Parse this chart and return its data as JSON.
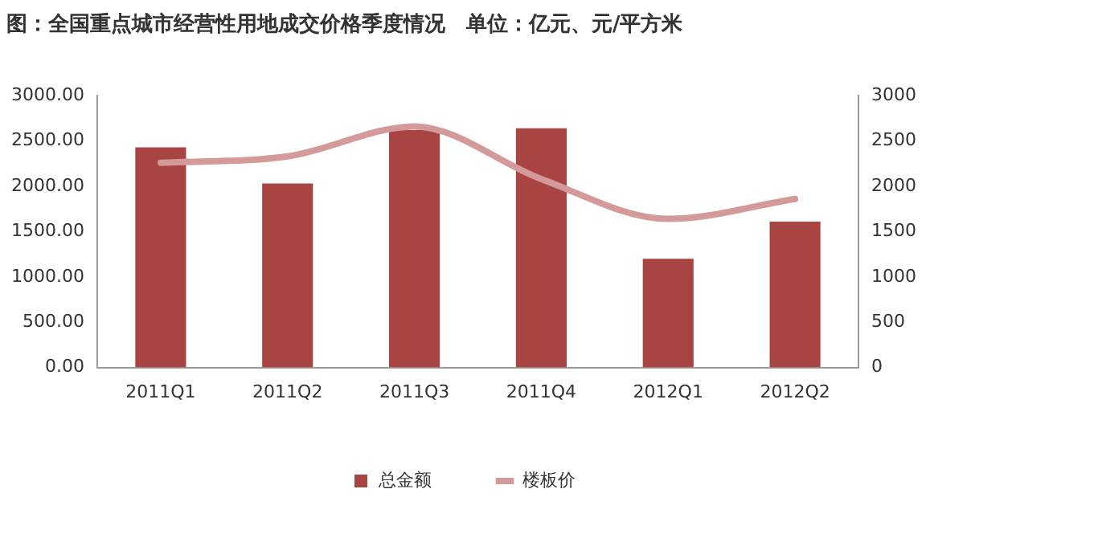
{
  "chart_data": {
    "type": "bar",
    "title": "图：全国重点城市经营性用地成交价格季度情况　单位：亿元、元/平方米",
    "categories": [
      "2011Q1",
      "2011Q2",
      "2011Q3",
      "2011Q4",
      "2012Q1",
      "2012Q2"
    ],
    "series": [
      {
        "name": "总金额",
        "color": "#a84442",
        "values": [
          2430,
          2030,
          2620,
          2640,
          1200,
          1610
        ]
      },
      {
        "name": "楼板价",
        "type": "line",
        "axis": "y2",
        "color": "#d49a9a",
        "values": [
          2260,
          2330,
          2660,
          2080,
          1640,
          1860
        ]
      }
    ],
    "ylim": [
      0,
      3000
    ],
    "yticks": [
      {
        "value": 0,
        "label": "0.00"
      },
      {
        "value": 500,
        "label": "500.00"
      },
      {
        "value": 1000,
        "label": "1000.00"
      },
      {
        "value": 1500,
        "label": "1500.00"
      },
      {
        "value": 2000,
        "label": "2000.00"
      },
      {
        "value": 2500,
        "label": "2500.00"
      },
      {
        "value": 3000,
        "label": "3000.00"
      }
    ],
    "y2lim": [
      0,
      3000
    ],
    "y2ticks": [
      0,
      500,
      1000,
      1500,
      2000,
      2500,
      3000
    ],
    "grid": false,
    "legend": "bottom",
    "marker": "none",
    "line_style": "solid"
  }
}
